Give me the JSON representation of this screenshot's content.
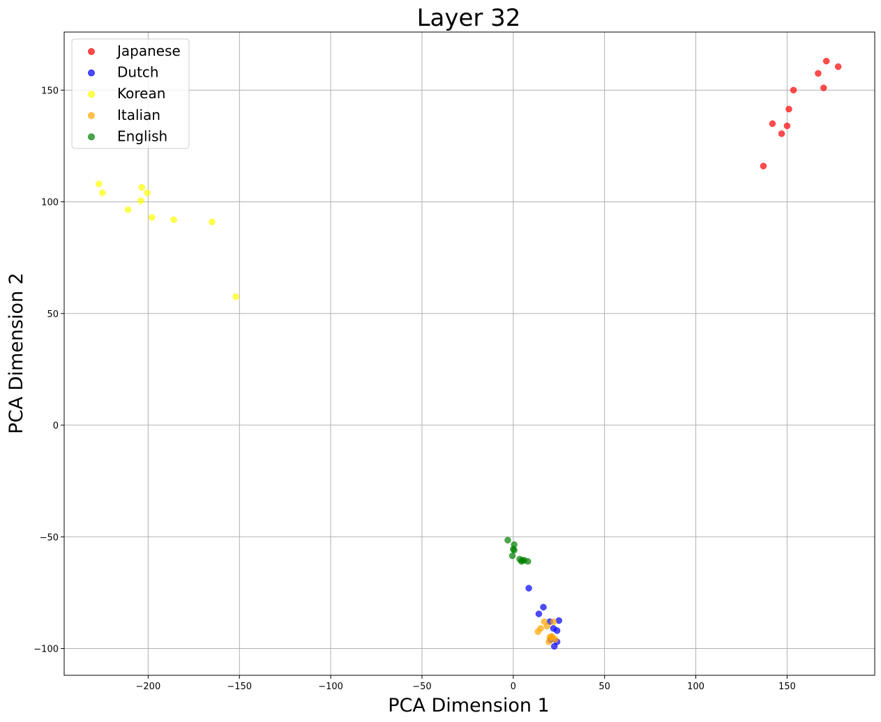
{
  "chart_data": {
    "type": "scatter",
    "title": "Layer 32",
    "xlabel": "PCA Dimension 1",
    "ylabel": "PCA Dimension 2",
    "xlim": [
      -246,
      198
    ],
    "ylim": [
      -112,
      176
    ],
    "xticks": [
      -200,
      -150,
      -100,
      -50,
      0,
      50,
      100,
      150
    ],
    "yticks": [
      -100,
      -50,
      0,
      50,
      100,
      150
    ],
    "grid": true,
    "legend_position": "top-left",
    "series": [
      {
        "name": "Japanese",
        "color": "#ff0000",
        "points": [
          [
            137,
            116
          ],
          [
            142,
            135
          ],
          [
            147,
            130.5
          ],
          [
            150,
            134
          ],
          [
            151,
            141.5
          ],
          [
            153.5,
            150
          ],
          [
            167,
            157.5
          ],
          [
            170,
            151
          ],
          [
            171.5,
            163
          ],
          [
            178,
            160.5
          ]
        ]
      },
      {
        "name": "Dutch",
        "color": "#0000ff",
        "points": [
          [
            8.5,
            -73
          ],
          [
            14,
            -84.5
          ],
          [
            16.5,
            -81.5
          ],
          [
            20,
            -88
          ],
          [
            22,
            -91
          ],
          [
            24,
            -92
          ],
          [
            25,
            -87.5
          ],
          [
            24,
            -97
          ],
          [
            22.5,
            -99
          ],
          [
            20.5,
            -96
          ]
        ]
      },
      {
        "name": "Korean",
        "color": "#ffff00",
        "points": [
          [
            -227,
            108
          ],
          [
            -225,
            104
          ],
          [
            -211,
            96.5
          ],
          [
            -204,
            100.5
          ],
          [
            -203.5,
            106.5
          ],
          [
            -200.5,
            104
          ],
          [
            -198,
            93
          ],
          [
            -186,
            92
          ],
          [
            -165,
            91
          ],
          [
            -152,
            57.5
          ]
        ]
      },
      {
        "name": "Italian",
        "color": "#ffa500",
        "points": [
          [
            13.5,
            -92.5
          ],
          [
            15,
            -91
          ],
          [
            17,
            -88
          ],
          [
            18.5,
            -90
          ],
          [
            20,
            -95
          ],
          [
            21,
            -94.5
          ],
          [
            22,
            -88
          ],
          [
            19.5,
            -97
          ],
          [
            23,
            -96
          ],
          [
            21.5,
            -95
          ]
        ]
      },
      {
        "name": "English",
        "color": "#008000",
        "points": [
          [
            -3,
            -51.5
          ],
          [
            0.5,
            -53.5
          ],
          [
            0,
            -55.5
          ],
          [
            0.5,
            -56
          ],
          [
            -0.5,
            -58.5
          ],
          [
            3.5,
            -60
          ],
          [
            4.5,
            -61
          ],
          [
            6,
            -60.5
          ],
          [
            8,
            -61
          ],
          [
            5,
            -60.5
          ]
        ]
      }
    ]
  }
}
